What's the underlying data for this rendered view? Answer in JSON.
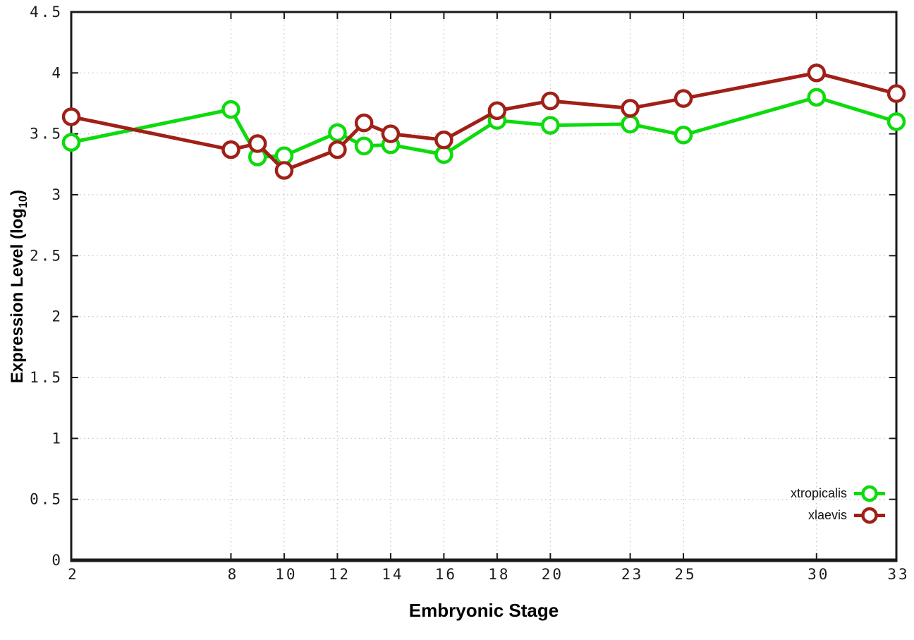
{
  "chart_data": {
    "type": "line",
    "title": "",
    "xlabel": "Embryonic Stage",
    "ylabel": "Expression Level (log10)",
    "ylabel_parts": {
      "prefix": "Expression Level (log",
      "subscript": "10",
      "suffix": ")"
    },
    "x": [
      2,
      8,
      9,
      10,
      12,
      13,
      14,
      16,
      18,
      20,
      23,
      25,
      30,
      33
    ],
    "xticks": [
      2,
      8,
      10,
      12,
      14,
      16,
      18,
      20,
      23,
      25,
      30,
      33
    ],
    "yticks": [
      0,
      0.5,
      1,
      1.5,
      2,
      2.5,
      3,
      3.5,
      4,
      4.5
    ],
    "xlim": [
      2,
      33
    ],
    "ylim": [
      0,
      4.5
    ],
    "grid": true,
    "legend_position": "inside-bottom-right",
    "background": "#ffffff",
    "axis_color": "#1a1a1a",
    "grid_color": "#c9c9c9",
    "marker": "open-circle",
    "series": [
      {
        "name": "xtropicalis",
        "color": "#0cdb0c",
        "values": [
          3.43,
          3.7,
          3.31,
          3.32,
          3.51,
          3.4,
          3.41,
          3.33,
          3.61,
          3.57,
          3.58,
          3.49,
          3.8,
          3.6
        ]
      },
      {
        "name": "xlaevis",
        "color": "#a02018",
        "values": [
          3.64,
          3.37,
          3.42,
          3.2,
          3.37,
          3.59,
          3.5,
          3.45,
          3.69,
          3.77,
          3.71,
          3.79,
          4.0,
          3.83
        ]
      }
    ]
  }
}
